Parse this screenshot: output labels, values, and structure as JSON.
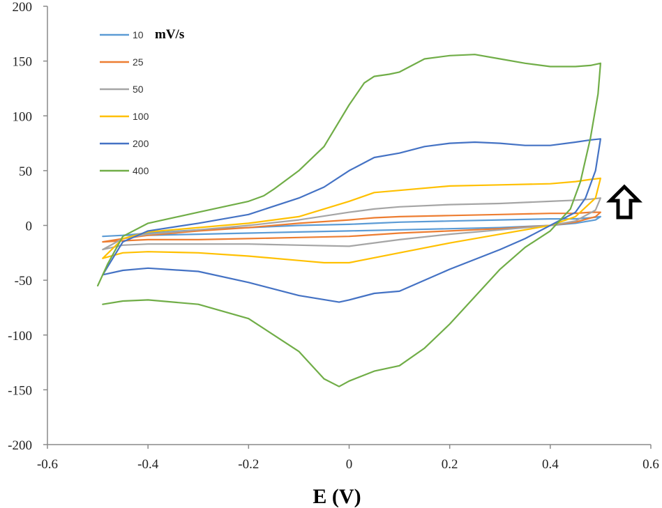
{
  "chart_data": {
    "type": "line",
    "title": "",
    "xlabel": "E (V)",
    "ylabel": "",
    "xlim": [
      -0.6,
      0.6
    ],
    "ylim": [
      -200,
      200
    ],
    "xticks": [
      -0.6,
      -0.4,
      -0.2,
      0,
      0.2,
      0.4,
      0.6
    ],
    "yticks": [
      200,
      150,
      100,
      50,
      0,
      -50,
      -100,
      -150,
      -200
    ],
    "xtick_labels": [
      "-0.6",
      "-0.4",
      "-0.2",
      "0",
      "0.2",
      "0.4",
      "0.6"
    ],
    "ytick_labels": [
      "200",
      "150",
      "100",
      "50",
      "0",
      "-50",
      "-100",
      "-150",
      "-200"
    ],
    "grid": false,
    "legend": {
      "position": "top-left",
      "unit": "mV/s"
    },
    "annotation": {
      "type": "up-arrow",
      "meaning": "increasing scan rate"
    },
    "series": [
      {
        "name": "10",
        "color": "#5B9BD5",
        "x": [
          -0.49,
          -0.45,
          -0.4,
          -0.3,
          -0.2,
          -0.1,
          0.0,
          0.05,
          0.1,
          0.2,
          0.3,
          0.4,
          0.45,
          0.48,
          0.5,
          0.49,
          0.45,
          0.4,
          0.3,
          0.2,
          0.1,
          0.0,
          -0.1,
          -0.2,
          -0.3,
          -0.4,
          -0.45,
          -0.49
        ],
        "y": [
          -10,
          -9,
          -7,
          -4,
          -2,
          0,
          1,
          2,
          3,
          4,
          5,
          6,
          6,
          7,
          8,
          5,
          2,
          0,
          -2,
          -3,
          -4,
          -5,
          -6,
          -7,
          -8,
          -9,
          -9,
          -10
        ]
      },
      {
        "name": "25",
        "color": "#ED7D31",
        "x": [
          -0.49,
          -0.45,
          -0.4,
          -0.3,
          -0.2,
          -0.1,
          0.0,
          0.05,
          0.1,
          0.2,
          0.3,
          0.4,
          0.45,
          0.48,
          0.5,
          0.49,
          0.45,
          0.4,
          0.3,
          0.2,
          0.1,
          0.0,
          -0.1,
          -0.2,
          -0.3,
          -0.4,
          -0.45,
          -0.49
        ],
        "y": [
          -15,
          -12,
          -9,
          -5,
          -2,
          2,
          5,
          7,
          8,
          9,
          10,
          11,
          11,
          12,
          12,
          8,
          3,
          0,
          -3,
          -5,
          -7,
          -10,
          -11,
          -12,
          -13,
          -13,
          -14,
          -15
        ]
      },
      {
        "name": "50",
        "color": "#A5A5A5",
        "x": [
          -0.49,
          -0.45,
          -0.4,
          -0.3,
          -0.2,
          -0.1,
          0.0,
          0.05,
          0.1,
          0.2,
          0.3,
          0.4,
          0.45,
          0.48,
          0.5,
          0.49,
          0.45,
          0.4,
          0.3,
          0.2,
          0.1,
          0.0,
          -0.1,
          -0.2,
          -0.3,
          -0.4,
          -0.45,
          -0.49
        ],
        "y": [
          -22,
          -12,
          -8,
          -4,
          0,
          5,
          12,
          15,
          17,
          19,
          20,
          22,
          23,
          24,
          25,
          14,
          4,
          0,
          -4,
          -8,
          -13,
          -19,
          -18,
          -17,
          -17,
          -17,
          -18,
          -22
        ]
      },
      {
        "name": "100",
        "color": "#FFC000",
        "x": [
          -0.49,
          -0.45,
          -0.4,
          -0.3,
          -0.2,
          -0.1,
          0.0,
          0.05,
          0.1,
          0.2,
          0.3,
          0.4,
          0.45,
          0.48,
          0.5,
          0.49,
          0.45,
          0.4,
          0.3,
          0.2,
          0.1,
          0.0,
          -0.05,
          -0.1,
          -0.2,
          -0.3,
          -0.4,
          -0.45,
          -0.49
        ],
        "y": [
          -30,
          -12,
          -6,
          -2,
          2,
          8,
          22,
          30,
          32,
          36,
          37,
          38,
          40,
          42,
          43,
          25,
          8,
          0,
          -8,
          -16,
          -25,
          -34,
          -34,
          -32,
          -28,
          -25,
          -24,
          -25,
          -30
        ]
      },
      {
        "name": "200",
        "color": "#4472C4",
        "x": [
          -0.49,
          -0.45,
          -0.4,
          -0.3,
          -0.2,
          -0.1,
          -0.05,
          0.0,
          0.05,
          0.1,
          0.15,
          0.2,
          0.25,
          0.3,
          0.35,
          0.4,
          0.45,
          0.48,
          0.5,
          0.49,
          0.47,
          0.45,
          0.4,
          0.35,
          0.3,
          0.2,
          0.1,
          0.05,
          0.0,
          -0.02,
          -0.1,
          -0.2,
          -0.3,
          -0.4,
          -0.45,
          -0.49
        ],
        "y": [
          -45,
          -15,
          -5,
          2,
          10,
          25,
          35,
          50,
          62,
          66,
          72,
          75,
          76,
          75,
          73,
          73,
          76,
          78,
          79,
          50,
          25,
          12,
          0,
          -12,
          -22,
          -40,
          -60,
          -62,
          -68,
          -70,
          -64,
          -52,
          -42,
          -39,
          -41,
          -45
        ]
      },
      {
        "name": "400",
        "color": "#70AD47",
        "x": [
          -0.5,
          -0.48,
          -0.45,
          -0.4,
          -0.3,
          -0.2,
          -0.17,
          -0.15,
          -0.1,
          -0.05,
          0.0,
          0.03,
          0.05,
          0.08,
          0.1,
          0.15,
          0.2,
          0.25,
          0.3,
          0.35,
          0.4,
          0.45,
          0.48,
          0.5,
          0.495,
          0.48,
          0.46,
          0.44,
          0.4,
          0.35,
          0.3,
          0.25,
          0.2,
          0.15,
          0.1,
          0.05,
          0.0,
          -0.02,
          -0.05,
          -0.1,
          -0.2,
          -0.3,
          -0.4,
          -0.45,
          -0.49
        ],
        "y": [
          -55,
          -35,
          -10,
          2,
          12,
          22,
          27,
          33,
          50,
          72,
          110,
          130,
          136,
          138,
          140,
          152,
          155,
          156,
          152,
          148,
          145,
          145,
          146,
          148,
          120,
          80,
          40,
          15,
          -5,
          -20,
          -40,
          -65,
          -90,
          -112,
          -128,
          -133,
          -142,
          -147,
          -140,
          -115,
          -85,
          -72,
          -68,
          -69,
          -72
        ]
      }
    ]
  }
}
